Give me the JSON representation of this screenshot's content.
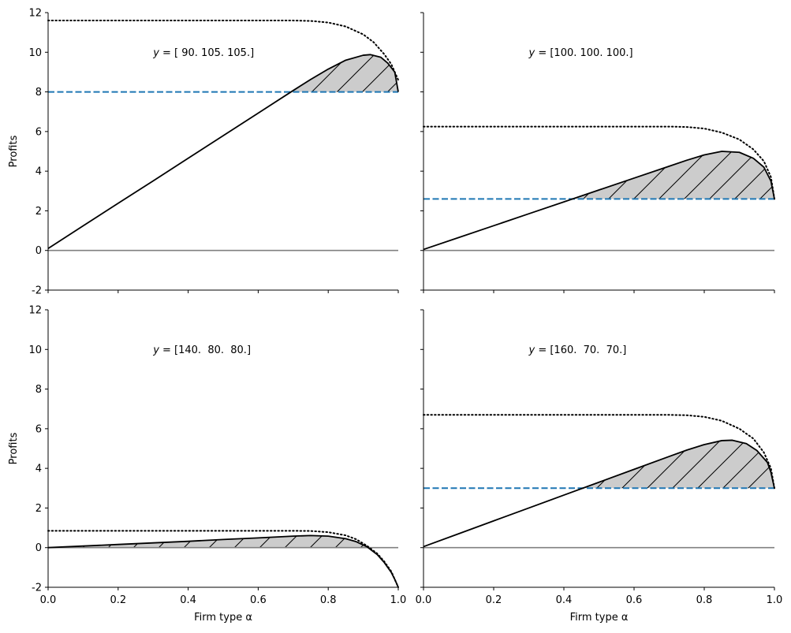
{
  "chart_data": [
    {
      "type": "line",
      "panel": "top-left",
      "annotation_prefix": "y",
      "annotation_values": " = [ 90. 105. 105.]",
      "ylabel": "Profits",
      "xlabel": "",
      "show_x_tick_labels": false,
      "show_y_tick_labels": true,
      "xlim": [
        0,
        1
      ],
      "ylim": [
        -2,
        12
      ],
      "xticks": [
        "0.0",
        "0.2",
        "0.4",
        "0.6",
        "0.8",
        "1.0"
      ],
      "yticks": [
        "-2",
        "0",
        "2",
        "4",
        "6",
        "8",
        "10",
        "12"
      ],
      "series": [
        {
          "name": "profit",
          "style": "solid",
          "x": [
            0,
            0.1,
            0.2,
            0.3,
            0.4,
            0.5,
            0.6,
            0.7,
            0.75,
            0.8,
            0.85,
            0.9,
            0.92,
            0.95,
            0.97,
            0.99,
            1.0
          ],
          "y": [
            0.1,
            1.24,
            2.38,
            3.51,
            4.65,
            5.79,
            6.93,
            8.07,
            8.63,
            9.15,
            9.6,
            9.85,
            9.88,
            9.75,
            9.45,
            9.0,
            8.0
          ]
        },
        {
          "name": "upper bound",
          "style": "dotted",
          "x": [
            0,
            0.2,
            0.4,
            0.6,
            0.7,
            0.75,
            0.8,
            0.85,
            0.9,
            0.93,
            0.96,
            0.98,
            1.0
          ],
          "y": [
            11.6,
            11.6,
            11.6,
            11.6,
            11.6,
            11.58,
            11.5,
            11.3,
            10.9,
            10.5,
            9.9,
            9.4,
            8.6
          ]
        },
        {
          "name": "threshold",
          "style": "dashed",
          "color": "#1f77b4",
          "x": [
            0,
            1
          ],
          "y": [
            8,
            8
          ]
        },
        {
          "name": "zero",
          "style": "solid",
          "color": "#808080",
          "x": [
            0,
            1
          ],
          "y": [
            0,
            0
          ]
        }
      ],
      "shaded_region": {
        "x_from": 0.7,
        "x_to": 1.0,
        "lower": 8
      }
    },
    {
      "type": "line",
      "panel": "top-right",
      "annotation_prefix": "y",
      "annotation_values": " = [100. 100. 100.]",
      "ylabel": "",
      "xlabel": "",
      "show_x_tick_labels": false,
      "show_y_tick_labels": false,
      "xlim": [
        0,
        1
      ],
      "ylim": [
        -2,
        12
      ],
      "xticks": [
        "0.0",
        "0.2",
        "0.4",
        "0.6",
        "0.8",
        "1.0"
      ],
      "yticks": [
        "-2",
        "0",
        "2",
        "4",
        "6",
        "8",
        "10",
        "12"
      ],
      "series": [
        {
          "name": "profit",
          "style": "solid",
          "x": [
            0,
            0.1,
            0.2,
            0.3,
            0.4,
            0.5,
            0.6,
            0.7,
            0.75,
            0.8,
            0.85,
            0.9,
            0.94,
            0.97,
            0.99,
            1.0
          ],
          "y": [
            0.05,
            0.65,
            1.25,
            1.85,
            2.45,
            3.05,
            3.65,
            4.25,
            4.55,
            4.82,
            5.0,
            4.95,
            4.65,
            4.2,
            3.5,
            2.6
          ]
        },
        {
          "name": "upper bound",
          "style": "dotted",
          "x": [
            0,
            0.2,
            0.4,
            0.6,
            0.7,
            0.75,
            0.8,
            0.85,
            0.9,
            0.94,
            0.97,
            0.99,
            1.0
          ],
          "y": [
            6.25,
            6.25,
            6.25,
            6.25,
            6.25,
            6.23,
            6.15,
            5.95,
            5.6,
            5.1,
            4.5,
            3.7,
            2.6
          ]
        },
        {
          "name": "threshold",
          "style": "dashed",
          "color": "#1f77b4",
          "x": [
            0,
            1
          ],
          "y": [
            2.6,
            2.6
          ]
        },
        {
          "name": "zero",
          "style": "solid",
          "color": "#808080",
          "x": [
            0,
            1
          ],
          "y": [
            0,
            0
          ]
        }
      ],
      "shaded_region": {
        "x_from": 0.42,
        "x_to": 1.0,
        "lower": 2.6
      }
    },
    {
      "type": "line",
      "panel": "bottom-left",
      "annotation_prefix": "y",
      "annotation_values": " = [140.  80.  80.]",
      "ylabel": "Profits",
      "xlabel": "Firm type α",
      "show_x_tick_labels": true,
      "show_y_tick_labels": true,
      "xlim": [
        0,
        1
      ],
      "ylim": [
        -2,
        12
      ],
      "xticks": [
        "0.0",
        "0.2",
        "0.4",
        "0.6",
        "0.8",
        "1.0"
      ],
      "yticks": [
        "-2",
        "0",
        "2",
        "4",
        "6",
        "8",
        "10",
        "12"
      ],
      "series": [
        {
          "name": "profit",
          "style": "solid",
          "x": [
            0,
            0.1,
            0.2,
            0.3,
            0.4,
            0.5,
            0.6,
            0.7,
            0.75,
            0.8,
            0.85,
            0.88,
            0.91,
            0.94,
            0.96,
            0.98,
            0.99,
            1.0
          ],
          "y": [
            0.0,
            0.08,
            0.16,
            0.24,
            0.32,
            0.41,
            0.49,
            0.58,
            0.61,
            0.58,
            0.45,
            0.3,
            0.05,
            -0.35,
            -0.75,
            -1.25,
            -1.6,
            -2.0
          ]
        },
        {
          "name": "upper bound",
          "style": "dotted",
          "x": [
            0,
            0.2,
            0.4,
            0.6,
            0.7,
            0.75,
            0.8,
            0.85,
            0.88,
            0.91,
            0.94,
            0.96,
            0.98,
            1.0
          ],
          "y": [
            0.85,
            0.85,
            0.85,
            0.85,
            0.85,
            0.84,
            0.78,
            0.62,
            0.42,
            0.1,
            -0.3,
            -0.7,
            -1.2,
            -2.0
          ]
        },
        {
          "name": "zero",
          "style": "solid",
          "color": "#808080",
          "x": [
            0,
            1
          ],
          "y": [
            0,
            0
          ]
        }
      ],
      "shaded_region": {
        "x_from": 0.0,
        "x_to": 0.91,
        "lower": 0
      }
    },
    {
      "type": "line",
      "panel": "bottom-right",
      "annotation_prefix": "y",
      "annotation_values": " = [160.  70.  70.]",
      "ylabel": "",
      "xlabel": "Firm type α",
      "show_x_tick_labels": true,
      "show_y_tick_labels": false,
      "xlim": [
        0,
        1
      ],
      "ylim": [
        -2,
        12
      ],
      "xticks": [
        "0.0",
        "0.2",
        "0.4",
        "0.6",
        "0.8",
        "1.0"
      ],
      "yticks": [
        "-2",
        "0",
        "2",
        "4",
        "6",
        "8",
        "10",
        "12"
      ],
      "series": [
        {
          "name": "profit",
          "style": "solid",
          "x": [
            0,
            0.1,
            0.2,
            0.3,
            0.4,
            0.5,
            0.6,
            0.7,
            0.75,
            0.8,
            0.85,
            0.88,
            0.92,
            0.95,
            0.98,
            0.99,
            1.0
          ],
          "y": [
            0.05,
            0.7,
            1.35,
            2.0,
            2.65,
            3.3,
            3.95,
            4.6,
            4.92,
            5.2,
            5.4,
            5.42,
            5.25,
            4.9,
            4.3,
            3.8,
            3.0
          ]
        },
        {
          "name": "upper bound",
          "style": "dotted",
          "x": [
            0,
            0.2,
            0.4,
            0.6,
            0.7,
            0.75,
            0.8,
            0.85,
            0.9,
            0.94,
            0.97,
            0.99,
            1.0
          ],
          "y": [
            6.7,
            6.7,
            6.7,
            6.7,
            6.7,
            6.68,
            6.6,
            6.4,
            6.0,
            5.5,
            4.8,
            4.0,
            3.0
          ]
        },
        {
          "name": "threshold",
          "style": "dashed",
          "color": "#1f77b4",
          "x": [
            0,
            1
          ],
          "y": [
            3.0,
            3.0
          ]
        },
        {
          "name": "zero",
          "style": "solid",
          "color": "#808080",
          "x": [
            0,
            1
          ],
          "y": [
            0,
            0
          ]
        }
      ],
      "shaded_region": {
        "x_from": 0.46,
        "x_to": 1.0,
        "lower": 3.0
      }
    }
  ],
  "colors": {
    "line": "#000000",
    "threshold": "#1f77b4",
    "zero": "#808080",
    "fill": "#cccccc"
  }
}
